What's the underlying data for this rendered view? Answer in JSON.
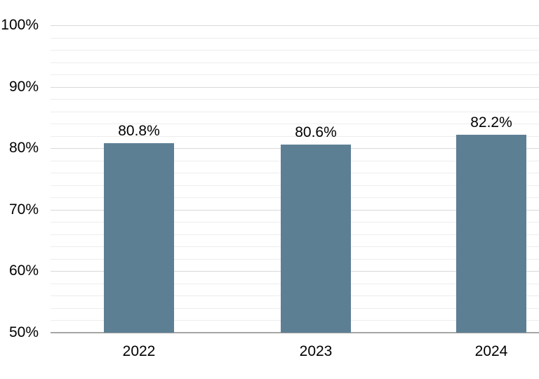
{
  "chart_data": {
    "type": "bar",
    "title": "",
    "xlabel": "",
    "ylabel": "",
    "categories": [
      "2022",
      "2023",
      "2024"
    ],
    "values": [
      80.8,
      80.6,
      82.2
    ],
    "bar_labels": [
      "80.8%",
      "80.6%",
      "82.2%"
    ],
    "ylim": [
      50,
      100
    ],
    "y_ticks": [
      100,
      90,
      80,
      70,
      60,
      50
    ],
    "y_tick_labels": [
      "100%",
      "90%",
      "80%",
      "70%",
      "60%",
      "50%"
    ],
    "major_grid_step": 10,
    "minor_grid_step": 2,
    "grid": "horizontal",
    "legend": "none",
    "colors": {
      "bar_fill": "#5d7f94",
      "grid_major": "#d9d9d9",
      "grid_minor": "#ededed",
      "axis_line": "#a6a6a6",
      "label_text": "#000000"
    }
  }
}
